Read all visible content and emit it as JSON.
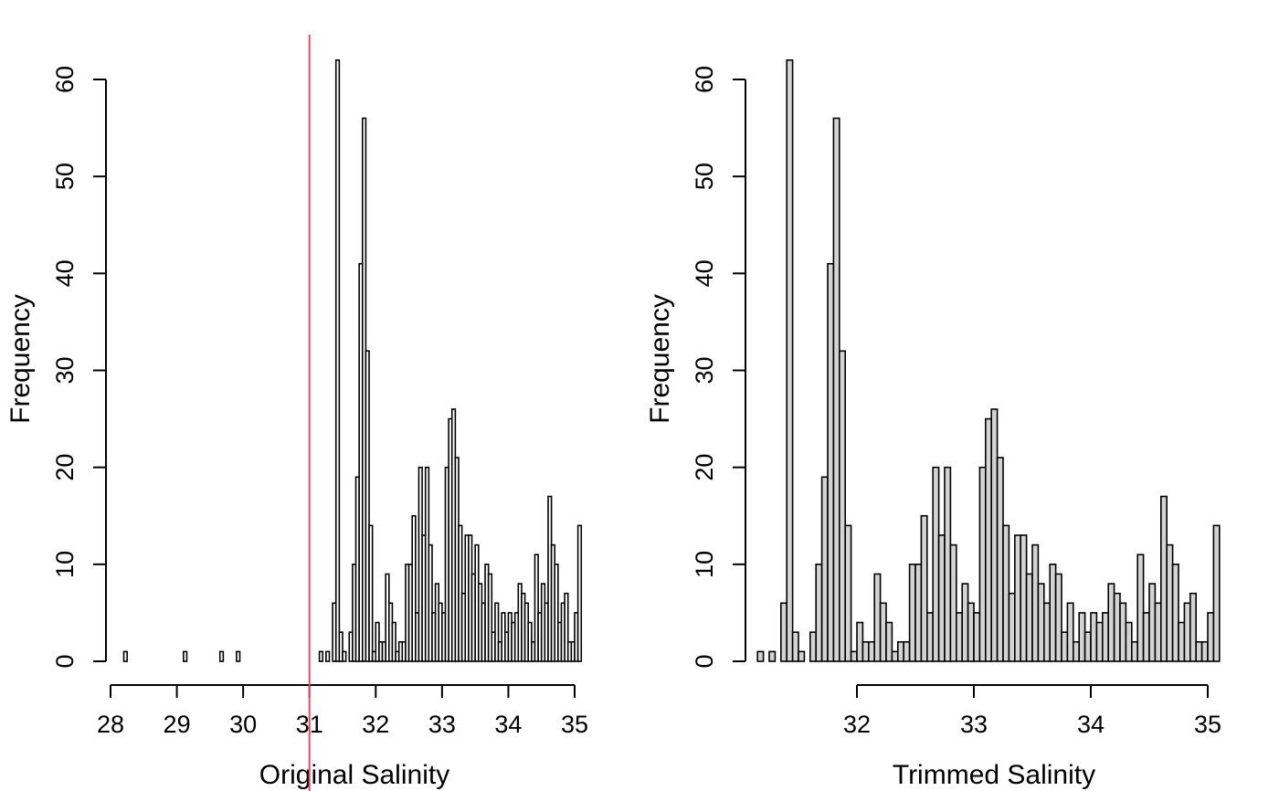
{
  "chart_data": [
    {
      "type": "bar",
      "xlabel": "Original Salinity",
      "ylabel": "Frequency",
      "xlim": [
        28,
        35.1
      ],
      "ylim": [
        0,
        60
      ],
      "x_ticks": [
        28,
        29,
        30,
        31,
        32,
        33,
        34,
        35
      ],
      "y_ticks": [
        0,
        10,
        20,
        30,
        40,
        50,
        60
      ],
      "bar_fill": "#ffffff",
      "grid": false,
      "vline": {
        "x": 31.0,
        "color": "#e8466a"
      },
      "bin_width": 0.05,
      "bins": [
        {
          "x": 28.2,
          "value": 1
        },
        {
          "x": 28.25,
          "value": 0
        },
        {
          "x": 28.3,
          "value": 0
        },
        {
          "x": 28.35,
          "value": 0
        },
        {
          "x": 28.4,
          "value": 0
        },
        {
          "x": 28.45,
          "value": 0
        },
        {
          "x": 28.5,
          "value": 0
        },
        {
          "x": 28.55,
          "value": 0
        },
        {
          "x": 28.6,
          "value": 0
        },
        {
          "x": 28.65,
          "value": 0
        },
        {
          "x": 28.7,
          "value": 0
        },
        {
          "x": 28.75,
          "value": 0
        },
        {
          "x": 28.8,
          "value": 0
        },
        {
          "x": 28.85,
          "value": 0
        },
        {
          "x": 28.9,
          "value": 0
        },
        {
          "x": 28.95,
          "value": 0
        },
        {
          "x": 29.0,
          "value": 0
        },
        {
          "x": 29.05,
          "value": 0
        },
        {
          "x": 29.1,
          "value": 1
        },
        {
          "x": 29.15,
          "value": 0
        },
        {
          "x": 29.2,
          "value": 0
        },
        {
          "x": 29.25,
          "value": 0
        },
        {
          "x": 29.3,
          "value": 0
        },
        {
          "x": 29.35,
          "value": 0
        },
        {
          "x": 29.4,
          "value": 0
        },
        {
          "x": 29.45,
          "value": 0
        },
        {
          "x": 29.5,
          "value": 0
        },
        {
          "x": 29.55,
          "value": 0
        },
        {
          "x": 29.6,
          "value": 0
        },
        {
          "x": 29.65,
          "value": 1
        },
        {
          "x": 29.7,
          "value": 0
        },
        {
          "x": 29.75,
          "value": 0
        },
        {
          "x": 29.8,
          "value": 0
        },
        {
          "x": 29.85,
          "value": 0
        },
        {
          "x": 29.9,
          "value": 1
        },
        {
          "x": 29.95,
          "value": 0
        },
        {
          "x": 30.0,
          "value": 0
        },
        {
          "x": 30.05,
          "value": 0
        },
        {
          "x": 30.1,
          "value": 0
        },
        {
          "x": 30.15,
          "value": 0
        },
        {
          "x": 30.2,
          "value": 0
        },
        {
          "x": 30.25,
          "value": 0
        },
        {
          "x": 30.3,
          "value": 0
        },
        {
          "x": 30.35,
          "value": 0
        },
        {
          "x": 30.4,
          "value": 0
        },
        {
          "x": 30.45,
          "value": 0
        },
        {
          "x": 30.5,
          "value": 0
        },
        {
          "x": 30.55,
          "value": 0
        },
        {
          "x": 30.6,
          "value": 0
        },
        {
          "x": 30.65,
          "value": 0
        },
        {
          "x": 30.7,
          "value": 0
        },
        {
          "x": 30.75,
          "value": 0
        },
        {
          "x": 30.8,
          "value": 0
        },
        {
          "x": 30.85,
          "value": 0
        },
        {
          "x": 30.9,
          "value": 0
        },
        {
          "x": 30.95,
          "value": 0
        },
        {
          "x": 31.0,
          "value": 0
        },
        {
          "x": 31.05,
          "value": 0
        },
        {
          "x": 31.1,
          "value": 0
        },
        {
          "x": 31.15,
          "value": 1
        },
        {
          "x": 31.2,
          "value": 0
        },
        {
          "x": 31.25,
          "value": 1
        },
        {
          "x": 31.3,
          "value": 0
        },
        {
          "x": 31.35,
          "value": 6
        },
        {
          "x": 31.4,
          "value": 62
        },
        {
          "x": 31.45,
          "value": 3
        },
        {
          "x": 31.5,
          "value": 1
        },
        {
          "x": 31.55,
          "value": 0
        },
        {
          "x": 31.6,
          "value": 3
        },
        {
          "x": 31.65,
          "value": 10
        },
        {
          "x": 31.7,
          "value": 19
        },
        {
          "x": 31.75,
          "value": 41
        },
        {
          "x": 31.8,
          "value": 56
        },
        {
          "x": 31.85,
          "value": 32
        },
        {
          "x": 31.9,
          "value": 14
        },
        {
          "x": 31.95,
          "value": 1
        },
        {
          "x": 32.0,
          "value": 4
        },
        {
          "x": 32.05,
          "value": 2
        },
        {
          "x": 32.1,
          "value": 2
        },
        {
          "x": 32.15,
          "value": 9
        },
        {
          "x": 32.2,
          "value": 6
        },
        {
          "x": 32.25,
          "value": 4
        },
        {
          "x": 32.3,
          "value": 1
        },
        {
          "x": 32.35,
          "value": 2
        },
        {
          "x": 32.4,
          "value": 2
        },
        {
          "x": 32.45,
          "value": 10
        },
        {
          "x": 32.5,
          "value": 10
        },
        {
          "x": 32.55,
          "value": 15
        },
        {
          "x": 32.6,
          "value": 5
        },
        {
          "x": 32.65,
          "value": 20
        },
        {
          "x": 32.7,
          "value": 13
        },
        {
          "x": 32.75,
          "value": 20
        },
        {
          "x": 32.8,
          "value": 12
        },
        {
          "x": 32.85,
          "value": 5
        },
        {
          "x": 32.9,
          "value": 8
        },
        {
          "x": 32.95,
          "value": 6
        },
        {
          "x": 33.0,
          "value": 5
        },
        {
          "x": 33.05,
          "value": 20
        },
        {
          "x": 33.1,
          "value": 25
        },
        {
          "x": 33.15,
          "value": 26
        },
        {
          "x": 33.2,
          "value": 21
        },
        {
          "x": 33.25,
          "value": 14
        },
        {
          "x": 33.3,
          "value": 7
        },
        {
          "x": 33.35,
          "value": 13
        },
        {
          "x": 33.4,
          "value": 13
        },
        {
          "x": 33.45,
          "value": 9
        },
        {
          "x": 33.5,
          "value": 12
        },
        {
          "x": 33.55,
          "value": 8
        },
        {
          "x": 33.6,
          "value": 6
        },
        {
          "x": 33.65,
          "value": 10
        },
        {
          "x": 33.7,
          "value": 9
        },
        {
          "x": 33.75,
          "value": 3
        },
        {
          "x": 33.8,
          "value": 6
        },
        {
          "x": 33.85,
          "value": 2
        },
        {
          "x": 33.9,
          "value": 5
        },
        {
          "x": 33.95,
          "value": 3
        },
        {
          "x": 34.0,
          "value": 5
        },
        {
          "x": 34.05,
          "value": 4
        },
        {
          "x": 34.1,
          "value": 5
        },
        {
          "x": 34.15,
          "value": 8
        },
        {
          "x": 34.2,
          "value": 7
        },
        {
          "x": 34.25,
          "value": 6
        },
        {
          "x": 34.3,
          "value": 4
        },
        {
          "x": 34.35,
          "value": 2
        },
        {
          "x": 34.4,
          "value": 11
        },
        {
          "x": 34.45,
          "value": 5
        },
        {
          "x": 34.5,
          "value": 8
        },
        {
          "x": 34.55,
          "value": 6
        },
        {
          "x": 34.6,
          "value": 17
        },
        {
          "x": 34.65,
          "value": 12
        },
        {
          "x": 34.7,
          "value": 10
        },
        {
          "x": 34.75,
          "value": 4
        },
        {
          "x": 34.8,
          "value": 6
        },
        {
          "x": 34.85,
          "value": 7
        },
        {
          "x": 34.9,
          "value": 2
        },
        {
          "x": 34.95,
          "value": 2
        },
        {
          "x": 35.0,
          "value": 5
        },
        {
          "x": 35.05,
          "value": 14
        }
      ]
    },
    {
      "type": "bar",
      "xlabel": "Trimmed Salinity",
      "ylabel": "Frequency",
      "xlim": [
        31.15,
        35.1
      ],
      "ylim": [
        0,
        60
      ],
      "x_ticks": [
        32,
        33,
        34,
        35
      ],
      "y_ticks": [
        0,
        10,
        20,
        30,
        40,
        50,
        60
      ],
      "bar_fill": "#d3d3d3",
      "grid": false,
      "bin_width": 0.05,
      "bins": [
        {
          "x": 31.15,
          "value": 1
        },
        {
          "x": 31.2,
          "value": 0
        },
        {
          "x": 31.25,
          "value": 1
        },
        {
          "x": 31.3,
          "value": 0
        },
        {
          "x": 31.35,
          "value": 6
        },
        {
          "x": 31.4,
          "value": 62
        },
        {
          "x": 31.45,
          "value": 3
        },
        {
          "x": 31.5,
          "value": 1
        },
        {
          "x": 31.55,
          "value": 0
        },
        {
          "x": 31.6,
          "value": 3
        },
        {
          "x": 31.65,
          "value": 10
        },
        {
          "x": 31.7,
          "value": 19
        },
        {
          "x": 31.75,
          "value": 41
        },
        {
          "x": 31.8,
          "value": 56
        },
        {
          "x": 31.85,
          "value": 32
        },
        {
          "x": 31.9,
          "value": 14
        },
        {
          "x": 31.95,
          "value": 1
        },
        {
          "x": 32.0,
          "value": 4
        },
        {
          "x": 32.05,
          "value": 2
        },
        {
          "x": 32.1,
          "value": 2
        },
        {
          "x": 32.15,
          "value": 9
        },
        {
          "x": 32.2,
          "value": 6
        },
        {
          "x": 32.25,
          "value": 4
        },
        {
          "x": 32.3,
          "value": 1
        },
        {
          "x": 32.35,
          "value": 2
        },
        {
          "x": 32.4,
          "value": 2
        },
        {
          "x": 32.45,
          "value": 10
        },
        {
          "x": 32.5,
          "value": 10
        },
        {
          "x": 32.55,
          "value": 15
        },
        {
          "x": 32.6,
          "value": 5
        },
        {
          "x": 32.65,
          "value": 20
        },
        {
          "x": 32.7,
          "value": 13
        },
        {
          "x": 32.75,
          "value": 20
        },
        {
          "x": 32.8,
          "value": 12
        },
        {
          "x": 32.85,
          "value": 5
        },
        {
          "x": 32.9,
          "value": 8
        },
        {
          "x": 32.95,
          "value": 6
        },
        {
          "x": 33.0,
          "value": 5
        },
        {
          "x": 33.05,
          "value": 20
        },
        {
          "x": 33.1,
          "value": 25
        },
        {
          "x": 33.15,
          "value": 26
        },
        {
          "x": 33.2,
          "value": 21
        },
        {
          "x": 33.25,
          "value": 14
        },
        {
          "x": 33.3,
          "value": 7
        },
        {
          "x": 33.35,
          "value": 13
        },
        {
          "x": 33.4,
          "value": 13
        },
        {
          "x": 33.45,
          "value": 9
        },
        {
          "x": 33.5,
          "value": 12
        },
        {
          "x": 33.55,
          "value": 8
        },
        {
          "x": 33.6,
          "value": 6
        },
        {
          "x": 33.65,
          "value": 10
        },
        {
          "x": 33.7,
          "value": 9
        },
        {
          "x": 33.75,
          "value": 3
        },
        {
          "x": 33.8,
          "value": 6
        },
        {
          "x": 33.85,
          "value": 2
        },
        {
          "x": 33.9,
          "value": 5
        },
        {
          "x": 33.95,
          "value": 3
        },
        {
          "x": 34.0,
          "value": 5
        },
        {
          "x": 34.05,
          "value": 4
        },
        {
          "x": 34.1,
          "value": 5
        },
        {
          "x": 34.15,
          "value": 8
        },
        {
          "x": 34.2,
          "value": 7
        },
        {
          "x": 34.25,
          "value": 6
        },
        {
          "x": 34.3,
          "value": 4
        },
        {
          "x": 34.35,
          "value": 2
        },
        {
          "x": 34.4,
          "value": 11
        },
        {
          "x": 34.45,
          "value": 5
        },
        {
          "x": 34.5,
          "value": 8
        },
        {
          "x": 34.55,
          "value": 6
        },
        {
          "x": 34.6,
          "value": 17
        },
        {
          "x": 34.65,
          "value": 12
        },
        {
          "x": 34.7,
          "value": 10
        },
        {
          "x": 34.75,
          "value": 4
        },
        {
          "x": 34.8,
          "value": 6
        },
        {
          "x": 34.85,
          "value": 7
        },
        {
          "x": 34.9,
          "value": 2
        },
        {
          "x": 34.95,
          "value": 2
        },
        {
          "x": 35.0,
          "value": 5
        },
        {
          "x": 35.05,
          "value": 14
        }
      ]
    }
  ]
}
